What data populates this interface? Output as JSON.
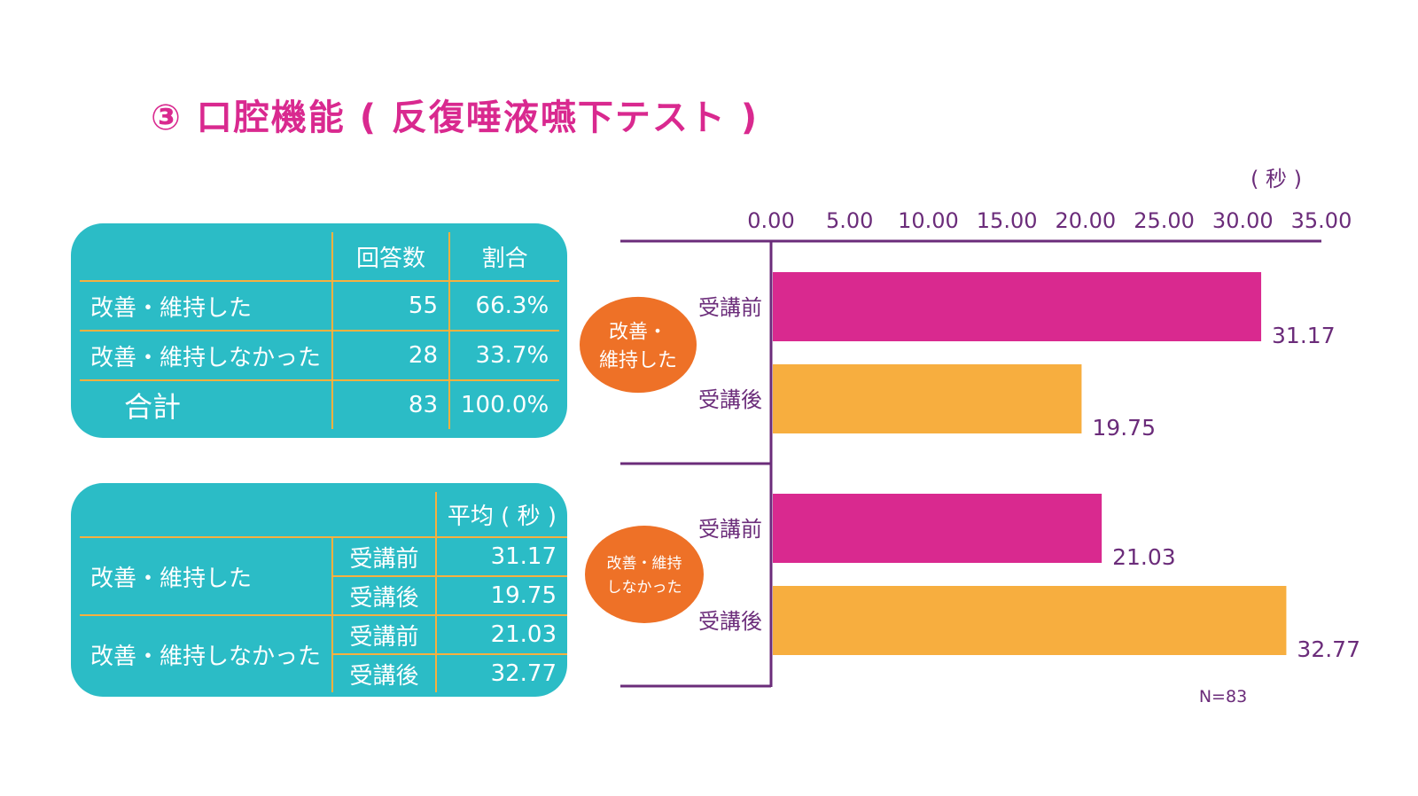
{
  "title": "③ 口腔機能 ( 反復唾液嚥下テスト )",
  "table1": {
    "headers": [
      "",
      "回答数",
      "割合"
    ],
    "rows": [
      {
        "label": "改善・維持した",
        "count": "55",
        "ratio": "66.3%"
      },
      {
        "label": "改善・維持しなかった",
        "count": "28",
        "ratio": "33.7%"
      },
      {
        "label": "合計",
        "count": "83",
        "ratio": "100.0%"
      }
    ]
  },
  "table2": {
    "header": "平均 ( 秒 )",
    "groups": [
      {
        "label": "改善・維持した",
        "rows": [
          {
            "phase": "受講前",
            "value": "31.17"
          },
          {
            "phase": "受講後",
            "value": "19.75"
          }
        ]
      },
      {
        "label": "改善・維持しなかった",
        "rows": [
          {
            "phase": "受講前",
            "value": "21.03"
          },
          {
            "phase": "受講後",
            "value": "32.77"
          }
        ]
      }
    ]
  },
  "chart_data": {
    "type": "bar",
    "orientation": "horizontal",
    "unit": "( 秒 )",
    "xlim": [
      0,
      35
    ],
    "ticks": [
      "0.00",
      "5.00",
      "10.00",
      "15.00",
      "20.00",
      "25.00",
      "30.00",
      "35.00"
    ],
    "groups": [
      {
        "label_lines": [
          "改善・",
          "維持した"
        ],
        "bars": [
          {
            "label": "受講前",
            "value": 31.17,
            "display": "31.17"
          },
          {
            "label": "受講後",
            "value": 19.75,
            "display": "19.75"
          }
        ]
      },
      {
        "label_lines": [
          "改善・維持",
          "しなかった"
        ],
        "bars": [
          {
            "label": "受講前",
            "value": 21.03,
            "display": "21.03"
          },
          {
            "label": "受講後",
            "value": 32.77,
            "display": "32.77"
          }
        ]
      }
    ],
    "note": "N=83"
  },
  "colors": {
    "title": "#d9298f",
    "panel": "#2bbcc6",
    "divider": "#f6b03f",
    "before": "#d9298f",
    "after": "#f7ae3f",
    "axis": "#6b2c7a",
    "bubble": "#ee7127"
  }
}
